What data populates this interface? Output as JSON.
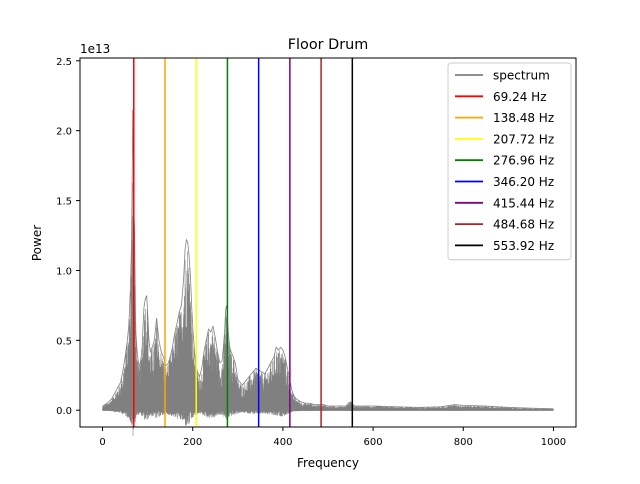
{
  "chart_data": {
    "type": "line",
    "title": "Floor Drum",
    "xlabel": "Frequency",
    "ylabel": "Power",
    "offset_text": "1e13",
    "xlim": [
      -50,
      1050
    ],
    "ylim": [
      -0.12,
      2.52
    ],
    "y_scale_exponent": 13,
    "x_ticks": [
      0,
      200,
      400,
      600,
      800,
      1000
    ],
    "x_tick_labels": [
      "0",
      "200",
      "400",
      "600",
      "800",
      "1000"
    ],
    "y_ticks": [
      0.0,
      0.5,
      1.0,
      1.5,
      2.0,
      2.5
    ],
    "y_tick_labels": [
      "0.0",
      "0.5",
      "1.0",
      "1.5",
      "2.0",
      "2.5"
    ],
    "grid": false,
    "legend_position": "top-right",
    "spectrum": {
      "name": "spectrum",
      "color": "#808080",
      "x": [
        0,
        10,
        20,
        30,
        40,
        45,
        50,
        55,
        58,
        60,
        62,
        64,
        65,
        66,
        67,
        68,
        69,
        70,
        71,
        72,
        73,
        74,
        75,
        76,
        78,
        80,
        82,
        85,
        88,
        90,
        92,
        95,
        98,
        100,
        103,
        106,
        110,
        115,
        118,
        120,
        125,
        130,
        135,
        138,
        140,
        145,
        150,
        155,
        160,
        165,
        170,
        175,
        180,
        183,
        186,
        189,
        192,
        195,
        198,
        201,
        204,
        207,
        210,
        215,
        220,
        225,
        230,
        235,
        240,
        245,
        250,
        255,
        260,
        265,
        268,
        271,
        273,
        275,
        277,
        279,
        282,
        285,
        290,
        295,
        300,
        310,
        320,
        330,
        340,
        350,
        360,
        370,
        380,
        385,
        390,
        395,
        400,
        405,
        410,
        415,
        420,
        425,
        430,
        440,
        450,
        460,
        470,
        480,
        490,
        500,
        510,
        520,
        530,
        540,
        545,
        550,
        555,
        560,
        570,
        580,
        600,
        650,
        700,
        750,
        780,
        800,
        850,
        900,
        950,
        1000
      ],
      "values": [
        0.03,
        0.05,
        0.08,
        0.14,
        0.2,
        0.28,
        0.38,
        0.5,
        0.6,
        0.72,
        0.9,
        1.15,
        1.4,
        1.75,
        2.15,
        1.95,
        1.55,
        1.38,
        1.3,
        1.0,
        0.72,
        0.55,
        0.5,
        0.45,
        0.38,
        0.33,
        0.32,
        0.36,
        0.46,
        0.62,
        0.74,
        0.8,
        0.82,
        0.7,
        0.5,
        0.42,
        0.45,
        0.5,
        0.6,
        0.66,
        0.5,
        0.42,
        0.38,
        0.35,
        0.32,
        0.33,
        0.38,
        0.45,
        0.55,
        0.62,
        0.7,
        0.75,
        0.95,
        1.15,
        1.22,
        1.2,
        1.1,
        0.95,
        0.72,
        0.55,
        0.42,
        0.32,
        0.28,
        0.24,
        0.3,
        0.42,
        0.5,
        0.58,
        0.56,
        0.6,
        0.52,
        0.42,
        0.34,
        0.35,
        0.45,
        0.58,
        0.72,
        0.75,
        0.65,
        0.55,
        0.45,
        0.42,
        0.38,
        0.33,
        0.22,
        0.18,
        0.22,
        0.26,
        0.3,
        0.28,
        0.26,
        0.32,
        0.38,
        0.45,
        0.43,
        0.45,
        0.43,
        0.38,
        0.3,
        0.22,
        0.14,
        0.1,
        0.08,
        0.06,
        0.05,
        0.05,
        0.04,
        0.04,
        0.04,
        0.03,
        0.03,
        0.03,
        0.03,
        0.03,
        0.05,
        0.06,
        0.04,
        0.03,
        0.03,
        0.03,
        0.03,
        0.025,
        0.02,
        0.025,
        0.04,
        0.035,
        0.03,
        0.02,
        0.015,
        0.01
      ]
    },
    "harmonics": [
      {
        "label": "69.24 Hz",
        "x": 69.24,
        "color": "#ff0000"
      },
      {
        "label": "138.48 Hz",
        "x": 138.48,
        "color": "#ffa500"
      },
      {
        "label": "207.72 Hz",
        "x": 207.72,
        "color": "#ffff00"
      },
      {
        "label": "276.96 Hz",
        "x": 276.96,
        "color": "#008000"
      },
      {
        "label": "346.20 Hz",
        "x": 346.2,
        "color": "#0000ff"
      },
      {
        "label": "415.44 Hz",
        "x": 415.44,
        "color": "#800080"
      },
      {
        "label": "484.68 Hz",
        "x": 484.68,
        "color": "#b22222"
      },
      {
        "label": "553.92 Hz",
        "x": 553.92,
        "color": "#000000"
      }
    ]
  }
}
